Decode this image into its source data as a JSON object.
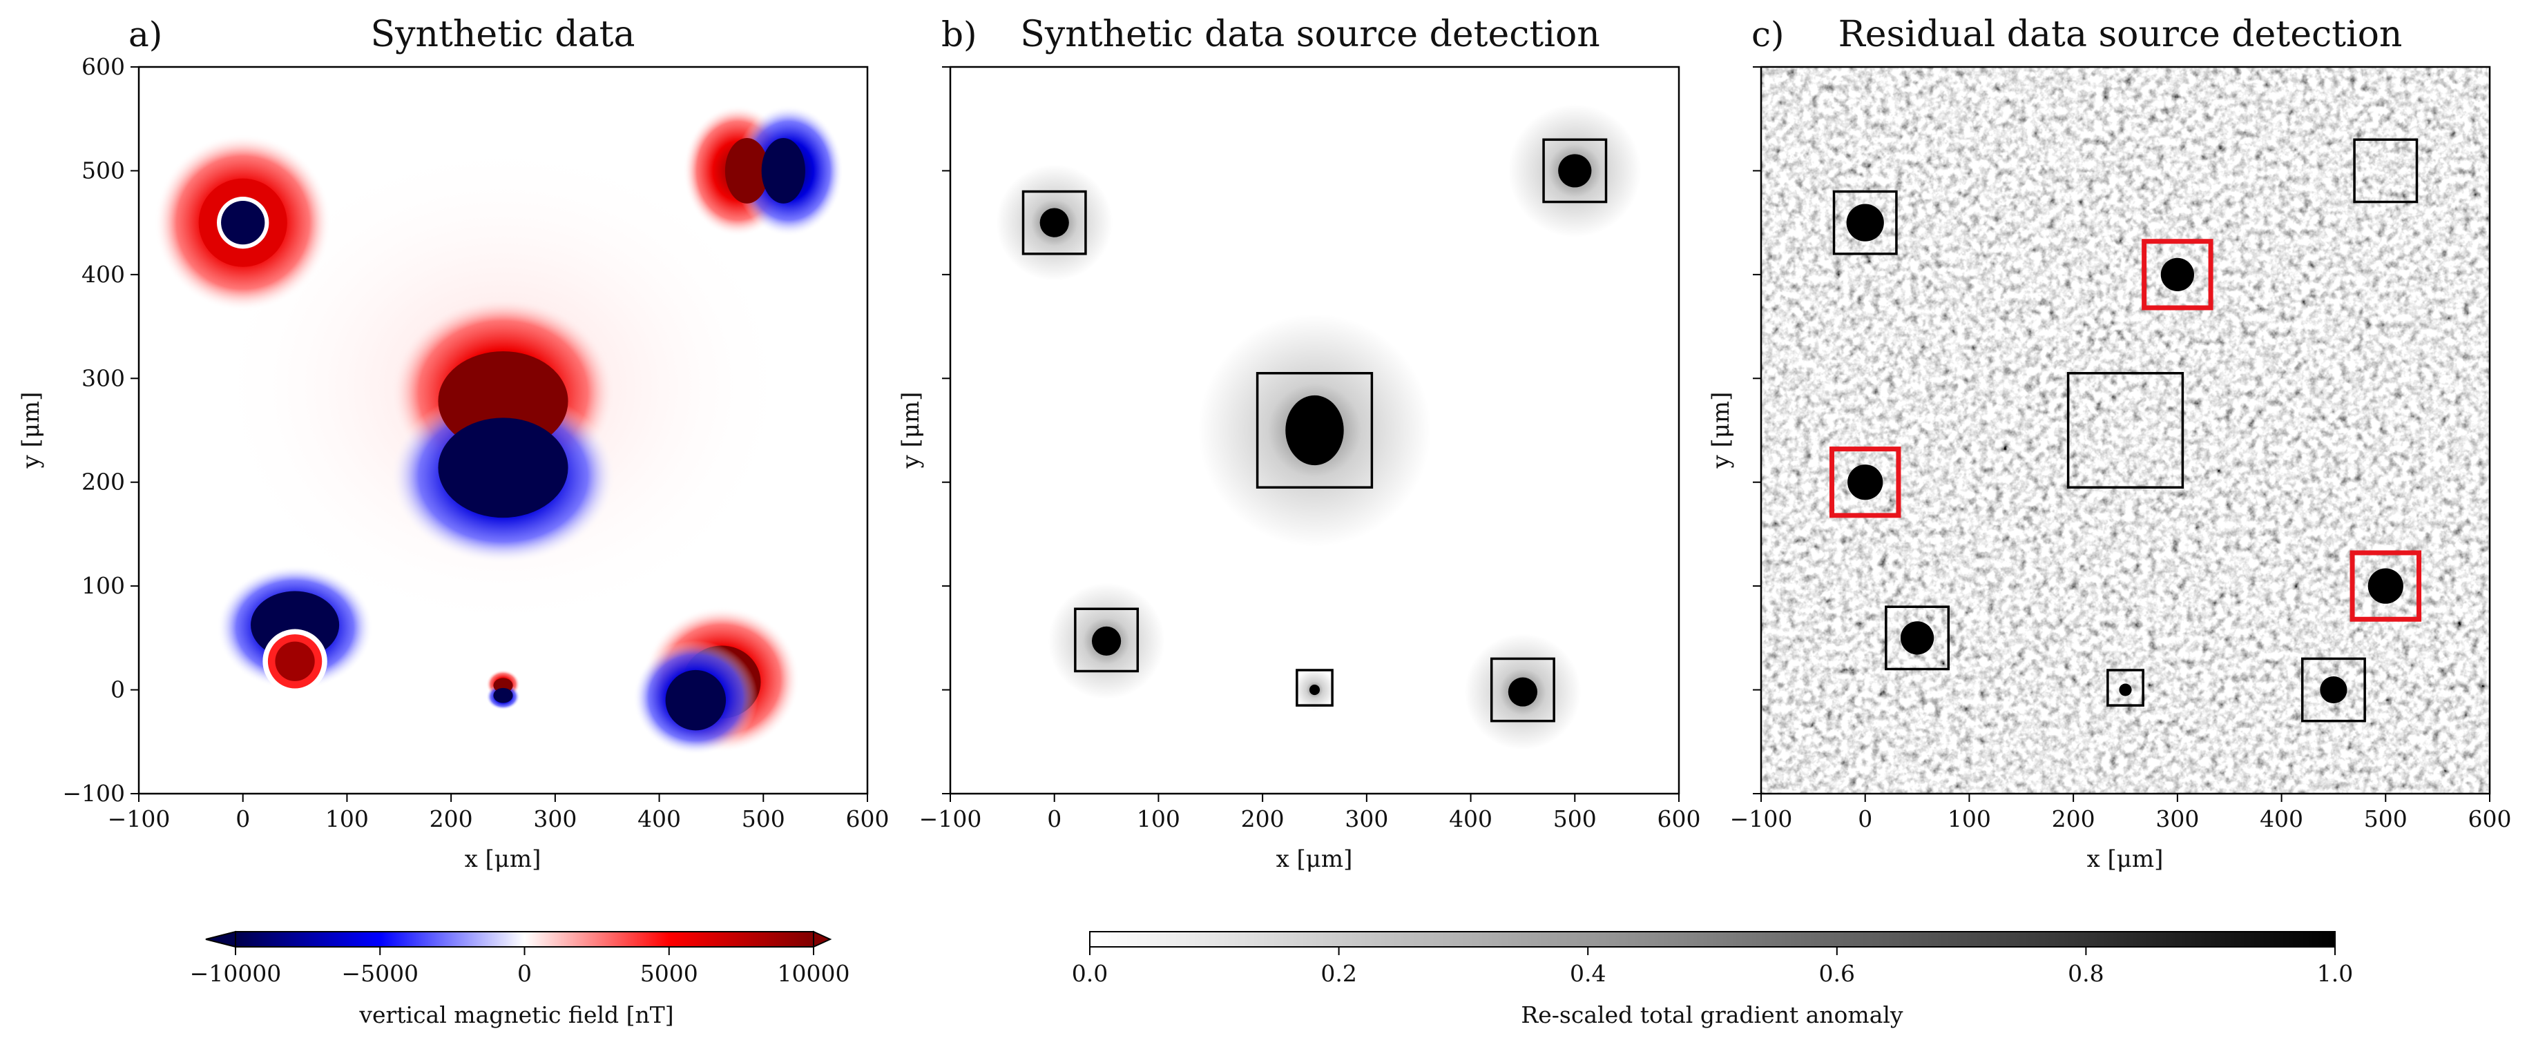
{
  "chart_data": [
    {
      "panel": "a)",
      "title": "Synthetic data",
      "type": "heatmap",
      "xlabel": "x [μm]",
      "ylabel": "y [μm]",
      "xlim": [
        -100,
        600
      ],
      "ylim": [
        -100,
        600
      ],
      "xticks": [
        -100,
        0,
        100,
        200,
        300,
        400,
        500,
        600
      ],
      "yticks": [
        -100,
        0,
        100,
        200,
        300,
        400,
        500,
        600
      ],
      "colormap": "seismic",
      "sources": [
        {
          "x": 0,
          "y": 450,
          "r": 50,
          "orientation": "pos-outer-neg-core"
        },
        {
          "x": 500,
          "y": 500,
          "r": 35,
          "orientation": "dipole-left-pos-right-neg"
        },
        {
          "x": 250,
          "y": 250,
          "r": 80,
          "orientation": "pos-top-neg-bottom"
        },
        {
          "x": 50,
          "y": 50,
          "r": 50,
          "orientation": "neg-top-pos-bottom"
        },
        {
          "x": 250,
          "y": 0,
          "r": 12,
          "orientation": "pos-top-neg-bottom"
        },
        {
          "x": 450,
          "y": 0,
          "r": 50,
          "orientation": "pos-top-neg-bottom-left"
        }
      ]
    },
    {
      "panel": "b)",
      "title": "Synthetic data source detection",
      "type": "heatmap",
      "xlabel": "x [μm]",
      "xlim": [
        -100,
        600
      ],
      "ylim": [
        -100,
        600
      ],
      "xticks": [
        -100,
        0,
        100,
        200,
        300,
        400,
        500,
        600
      ],
      "colormap": "gray_r",
      "blobs": [
        {
          "x": 0,
          "y": 450,
          "r": 14
        },
        {
          "x": 500,
          "y": 500,
          "r": 16
        },
        {
          "x": 250,
          "y": 250,
          "r": 28
        },
        {
          "x": 50,
          "y": 47,
          "r": 14
        },
        {
          "x": 450,
          "y": -2,
          "r": 14
        },
        {
          "x": 250,
          "y": 0,
          "r": 5
        }
      ],
      "boxes": [
        {
          "x0": -30,
          "x1": 30,
          "y0": 420,
          "y1": 480,
          "color": "black"
        },
        {
          "x0": 470,
          "x1": 530,
          "y0": 470,
          "y1": 530,
          "color": "black"
        },
        {
          "x0": 195,
          "x1": 305,
          "y0": 195,
          "y1": 305,
          "color": "black"
        },
        {
          "x0": 20,
          "x1": 80,
          "y0": 18,
          "y1": 78,
          "color": "black"
        },
        {
          "x0": 420,
          "x1": 480,
          "y0": -30,
          "y1": 30,
          "color": "black"
        },
        {
          "x0": 233,
          "x1": 267,
          "y0": -15,
          "y1": 19,
          "color": "black"
        }
      ]
    },
    {
      "panel": "c)",
      "title": "Residual data source detection",
      "type": "heatmap",
      "xlabel": "x [μm]",
      "xlim": [
        -100,
        600
      ],
      "ylim": [
        -100,
        600
      ],
      "xticks": [
        -100,
        0,
        100,
        200,
        300,
        400,
        500,
        600
      ],
      "colormap": "gray_r",
      "blobs": [
        {
          "x": 0,
          "y": 450,
          "r": 18
        },
        {
          "x": 300,
          "y": 400,
          "r": 16
        },
        {
          "x": 0,
          "y": 200,
          "r": 17
        },
        {
          "x": 500,
          "y": 100,
          "r": 17
        },
        {
          "x": 50,
          "y": 50,
          "r": 16
        },
        {
          "x": 450,
          "y": 0,
          "r": 13
        },
        {
          "x": 250,
          "y": 0,
          "r": 6
        }
      ],
      "boxes": [
        {
          "x0": -30,
          "x1": 30,
          "y0": 420,
          "y1": 480,
          "color": "black"
        },
        {
          "x0": 470,
          "x1": 530,
          "y0": 470,
          "y1": 530,
          "color": "black"
        },
        {
          "x0": 195,
          "x1": 305,
          "y0": 195,
          "y1": 305,
          "color": "black"
        },
        {
          "x0": 20,
          "x1": 80,
          "y0": 20,
          "y1": 80,
          "color": "black"
        },
        {
          "x0": 420,
          "x1": 480,
          "y0": -30,
          "y1": 30,
          "color": "black"
        },
        {
          "x0": 233,
          "x1": 267,
          "y0": -15,
          "y1": 19,
          "color": "black"
        },
        {
          "x0": 268,
          "x1": 332,
          "y0": 368,
          "y1": 432,
          "color": "red"
        },
        {
          "x0": -32,
          "x1": 32,
          "y0": 168,
          "y1": 232,
          "color": "red"
        },
        {
          "x0": 468,
          "x1": 532,
          "y0": 68,
          "y1": 132,
          "color": "red"
        }
      ]
    }
  ],
  "colorbars": [
    {
      "label": "vertical magnetic field [nT]",
      "ticks": [
        "−10000",
        "−5000",
        "0",
        "5000",
        "10000"
      ],
      "range": [
        -10000,
        10000
      ],
      "extend": "both",
      "colormap": "seismic"
    },
    {
      "label": "Re-scaled total gradient anomaly",
      "ticks": [
        "0.0",
        "0.2",
        "0.4",
        "0.6",
        "0.8",
        "1.0"
      ],
      "range": [
        0,
        1
      ],
      "colormap": "gray_r"
    }
  ],
  "colors": {
    "positive": "#ff0000",
    "positive_dark": "#800000",
    "negative": "#0000ff",
    "negative_dark": "#00004c",
    "detect_box": "#000000",
    "new_detect_box": "#e8141c"
  }
}
